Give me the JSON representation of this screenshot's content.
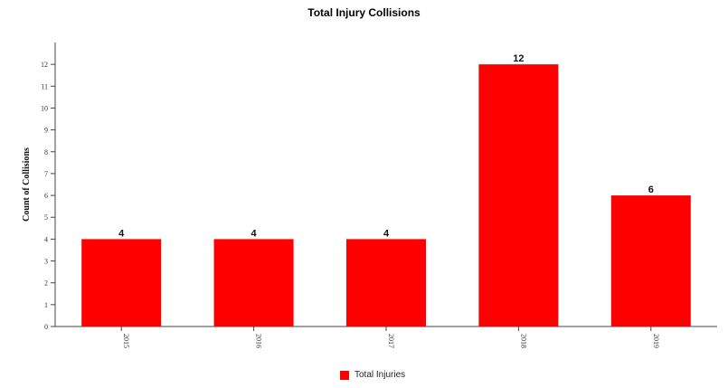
{
  "chart_data": {
    "type": "bar",
    "title": "Total Injury Collisions",
    "ylabel": "Count of Collisions",
    "xlabel": "",
    "categories": [
      "2015",
      "2016",
      "2017",
      "2018",
      "2019"
    ],
    "series": [
      {
        "name": "Total Injuries",
        "values": [
          4,
          4,
          4,
          12,
          6
        ],
        "color": "#ff0000"
      }
    ],
    "ylim": [
      0,
      13
    ],
    "yticks": [
      0,
      1,
      2,
      3,
      4,
      5,
      6,
      7,
      8,
      9,
      10,
      11,
      12
    ],
    "data_labels": true,
    "grid": false,
    "legend_position": "bottom-center"
  }
}
